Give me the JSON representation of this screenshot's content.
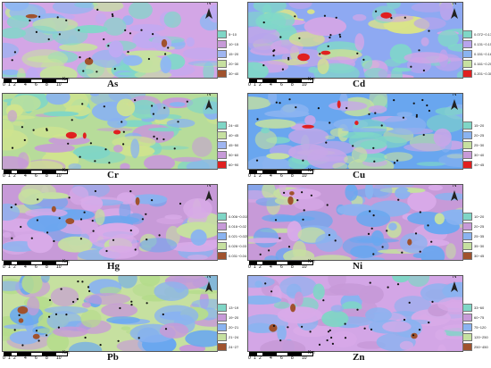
{
  "scale_bar": {
    "ticks": [
      "0",
      "1",
      "2",
      "4",
      "6",
      "8",
      "10"
    ],
    "unit": "Km"
  },
  "north_label": "N",
  "panels": [
    {
      "element": "As",
      "legend": [
        {
          "label": "5~10",
          "color": "#7fd6c6"
        },
        {
          "label": "10~15",
          "color": "#c79ad8"
        },
        {
          "label": "15~20",
          "color": "#9fb5f0"
        },
        {
          "label": "20~30",
          "color": "#c6e0a0"
        },
        {
          "label": "30~40",
          "color": "#a0522d"
        }
      ],
      "palette": [
        "#d3a6e6",
        "#bfaaf2",
        "#8fb7f2",
        "#80d8c8",
        "#c6e39d"
      ]
    },
    {
      "element": "Cd",
      "legend": [
        {
          "label": "0.072~0.13",
          "color": "#7fd6c6"
        },
        {
          "label": "0.131~0.15",
          "color": "#b8a4ec"
        },
        {
          "label": "0.151~0.16",
          "color": "#8ab3f0"
        },
        {
          "label": "0.161~0.20",
          "color": "#c6e0a0"
        },
        {
          "label": "0.201~0.30",
          "color": "#e02020"
        }
      ],
      "palette": [
        "#8ea9f2",
        "#b8a4ec",
        "#d3a6e6",
        "#80d8c8",
        "#d9e38a"
      ]
    },
    {
      "element": "Cr",
      "legend": [
        {
          "label": "24~40",
          "color": "#7fd6c6"
        },
        {
          "label": "40~45",
          "color": "#c6e0a0"
        },
        {
          "label": "45~50",
          "color": "#9fb5f0"
        },
        {
          "label": "50~60",
          "color": "#c79ad8"
        },
        {
          "label": "60~90",
          "color": "#e02020"
        }
      ],
      "palette": [
        "#b7dc9a",
        "#8ab3f0",
        "#c79ad8",
        "#7fd6c6",
        "#d0e48e"
      ]
    },
    {
      "element": "Cu",
      "legend": [
        {
          "label": "15~20",
          "color": "#7fd6c6"
        },
        {
          "label": "20~25",
          "color": "#8ab3f0"
        },
        {
          "label": "25~30",
          "color": "#c6e0a0"
        },
        {
          "label": "30~40",
          "color": "#c79ad8"
        },
        {
          "label": "40~45",
          "color": "#e02020"
        }
      ],
      "palette": [
        "#69a6ef",
        "#7fd6c6",
        "#c7a6e8",
        "#8ab3f0",
        "#c6e0a0"
      ]
    },
    {
      "element": "Hg",
      "legend": [
        {
          "label": "0.006~0.015",
          "color": "#7fd6c6"
        },
        {
          "label": "0.016~0.02",
          "color": "#c79ad8"
        },
        {
          "label": "0.021~0.025",
          "color": "#8ab3f0"
        },
        {
          "label": "0.026~0.03",
          "color": "#c6e0a0"
        },
        {
          "label": "0.031~0.04",
          "color": "#a0522d"
        }
      ],
      "palette": [
        "#c79ad8",
        "#8ab3f0",
        "#6aa7ef",
        "#c6e0a0",
        "#d8aae8"
      ]
    },
    {
      "element": "Ni",
      "legend": [
        {
          "label": "10~20",
          "color": "#7fd6c6"
        },
        {
          "label": "20~25",
          "color": "#c79ad8"
        },
        {
          "label": "25~35",
          "color": "#8ab3f0"
        },
        {
          "label": "35~30",
          "color": "#c6e0a0"
        },
        {
          "label": "30~45",
          "color": "#a0522d"
        }
      ],
      "palette": [
        "#c79ad8",
        "#8ab3f0",
        "#d8aae8",
        "#c6e0a0",
        "#6aa7ef"
      ]
    },
    {
      "element": "Pb",
      "legend": [
        {
          "label": "13~19",
          "color": "#7fd6c6"
        },
        {
          "label": "19~20",
          "color": "#c79ad8"
        },
        {
          "label": "20~21",
          "color": "#8ab3f0"
        },
        {
          "label": "21~24",
          "color": "#c6e0a0"
        },
        {
          "label": "24~27",
          "color": "#a0522d"
        }
      ],
      "palette": [
        "#c6e0a0",
        "#8ab3f0",
        "#c79ad8",
        "#6aa7ef",
        "#b5dc8c"
      ]
    },
    {
      "element": "Zn",
      "legend": [
        {
          "label": "33~60",
          "color": "#7fd6c6"
        },
        {
          "label": "60~75",
          "color": "#c79ad8"
        },
        {
          "label": "75~120",
          "color": "#8ab3f0"
        },
        {
          "label": "120~250",
          "color": "#c6e0a0"
        },
        {
          "label": "250~450",
          "color": "#a0522d"
        }
      ],
      "palette": [
        "#d3a6e6",
        "#c79ad8",
        "#8ab3f0",
        "#7fd6c6",
        "#d8aae8"
      ]
    }
  ]
}
